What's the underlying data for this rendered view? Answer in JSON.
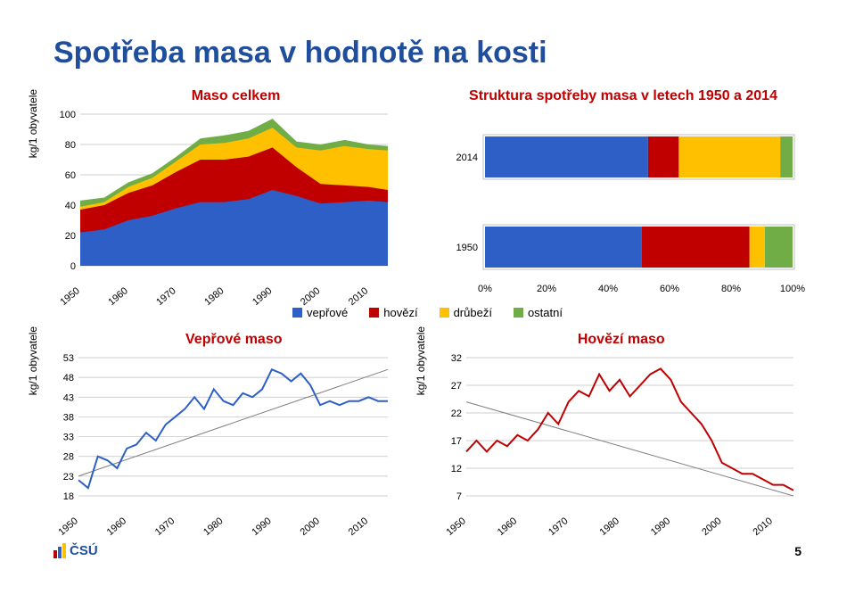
{
  "title": "Spotřeba masa v hodnotě na kosti",
  "page_number": "5",
  "logo_text": "ČSÚ",
  "colors": {
    "title": "#1f4e9c",
    "header_red": "#c00000",
    "veprove": "#2e5fc7",
    "hovezi": "#c00000",
    "drubezi": "#ffc000",
    "ostatni": "#70ad47",
    "grid": "#bfbfbf",
    "trend": "#7f7f7f"
  },
  "area_chart": {
    "title": "Maso celkem",
    "ylabel": "kg/1 obyvatele",
    "ylim": [
      0,
      100
    ],
    "ytick_step": 20,
    "xticks": [
      1950,
      1960,
      1970,
      1980,
      1990,
      2000,
      2010
    ],
    "years": [
      1950,
      1955,
      1960,
      1965,
      1970,
      1975,
      1980,
      1985,
      1990,
      1995,
      2000,
      2005,
      2010,
      2014
    ],
    "series": {
      "veprove": [
        22,
        24,
        30,
        33,
        38,
        42,
        42,
        44,
        50,
        46,
        41,
        42,
        43,
        42
      ],
      "hovezi": [
        15,
        16,
        18,
        20,
        24,
        28,
        28,
        28,
        28,
        19,
        13,
        11,
        9,
        8
      ],
      "drubezi": [
        2,
        2,
        4,
        5,
        7,
        10,
        11,
        12,
        13,
        13,
        22,
        26,
        25,
        26
      ],
      "ostatni": [
        4,
        3,
        3,
        3,
        3,
        4,
        5,
        5,
        6,
        4,
        4,
        4,
        3,
        3
      ]
    }
  },
  "struct_chart": {
    "title": "Struktura spotřeby masa v letech 1950 a 2014",
    "xticks": [
      "0%",
      "20%",
      "40%",
      "60%",
      "80%",
      "100%"
    ],
    "bars": [
      {
        "label": "2014",
        "veprove": 53,
        "hovezi": 10,
        "drubezi": 33,
        "ostatni": 4
      },
      {
        "label": "1950",
        "veprove": 51,
        "hovezi": 35,
        "drubezi": 5,
        "ostatni": 9
      }
    ]
  },
  "legend": [
    {
      "label": "vepřové",
      "color": "#2e5fc7"
    },
    {
      "label": "hovězí",
      "color": "#c00000"
    },
    {
      "label": "drůbeží",
      "color": "#ffc000"
    },
    {
      "label": "ostatní",
      "color": "#70ad47"
    }
  ],
  "veprove_chart": {
    "title": "Vepřové maso",
    "ylabel": "kg/1 obyvatele",
    "ylim": [
      18,
      53
    ],
    "ytick_step": 5,
    "xticks": [
      1950,
      1960,
      1970,
      1980,
      1990,
      2000,
      2010
    ],
    "years": [
      1950,
      1952,
      1954,
      1956,
      1958,
      1960,
      1962,
      1964,
      1966,
      1968,
      1970,
      1972,
      1974,
      1976,
      1978,
      1980,
      1982,
      1984,
      1986,
      1988,
      1990,
      1992,
      1994,
      1996,
      1998,
      2000,
      2002,
      2004,
      2006,
      2008,
      2010,
      2012,
      2014
    ],
    "values": [
      22,
      20,
      28,
      27,
      25,
      30,
      31,
      34,
      32,
      36,
      38,
      40,
      43,
      40,
      45,
      42,
      41,
      44,
      43,
      45,
      50,
      49,
      47,
      49,
      46,
      41,
      42,
      41,
      42,
      42,
      43,
      42,
      42
    ],
    "trend": [
      23,
      50
    ],
    "color": "#2e5fc7",
    "line_width": 2
  },
  "hovezi_chart": {
    "title": "Hovězí maso",
    "ylabel": "kg/1 obyvatele",
    "ylim": [
      7,
      32
    ],
    "ytick_step": 5,
    "xticks": [
      1950,
      1960,
      1970,
      1980,
      1990,
      2000,
      2010
    ],
    "years": [
      1950,
      1952,
      1954,
      1956,
      1958,
      1960,
      1962,
      1964,
      1966,
      1968,
      1970,
      1972,
      1974,
      1976,
      1978,
      1980,
      1982,
      1984,
      1986,
      1988,
      1990,
      1992,
      1994,
      1996,
      1998,
      2000,
      2002,
      2004,
      2006,
      2008,
      2010,
      2012,
      2014
    ],
    "values": [
      15,
      17,
      15,
      17,
      16,
      18,
      17,
      19,
      22,
      20,
      24,
      26,
      25,
      29,
      26,
      28,
      25,
      27,
      29,
      30,
      28,
      24,
      22,
      20,
      17,
      13,
      12,
      11,
      11,
      10,
      9,
      9,
      8
    ],
    "trend": [
      24,
      7
    ],
    "color": "#c00000",
    "line_width": 2
  }
}
